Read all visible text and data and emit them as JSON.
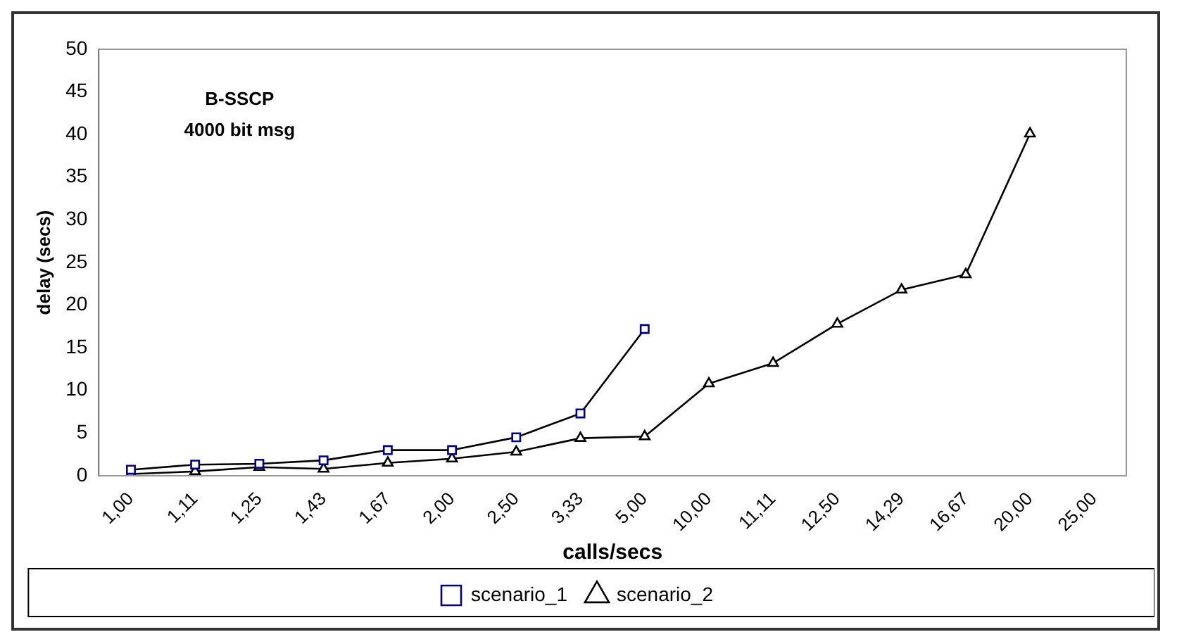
{
  "chart_data": {
    "type": "line",
    "xlabel": "calls/secs",
    "ylabel": "delay (secs)",
    "annotations": [
      "B-SSCP",
      "4000 bit msg"
    ],
    "categories": [
      "1,00",
      "1,11",
      "1,25",
      "1,43",
      "1,67",
      "2,00",
      "2,50",
      "3,33",
      "5,00",
      "10,00",
      "11,11",
      "12,50",
      "14,29",
      "16,67",
      "20,00",
      "25,00"
    ],
    "series": [
      {
        "name": "scenario_1",
        "color": "#000080",
        "marker": "square",
        "values": [
          0.7,
          1.3,
          1.4,
          1.8,
          3.0,
          3.0,
          4.5,
          7.3,
          17.2,
          null,
          null,
          null,
          null,
          null,
          null,
          null
        ]
      },
      {
        "name": "scenario_2",
        "color": "#000000",
        "marker": "triangle",
        "values": [
          0.2,
          0.5,
          1.0,
          0.8,
          1.5,
          2.0,
          2.8,
          4.4,
          4.6,
          10.8,
          13.2,
          17.8,
          21.8,
          23.6,
          40.1,
          null
        ]
      }
    ],
    "ylim": [
      0,
      50
    ],
    "yticks": [
      0,
      5,
      10,
      15,
      20,
      25,
      30,
      35,
      40,
      45,
      50
    ],
    "grid": false,
    "legend": "bottom"
  }
}
